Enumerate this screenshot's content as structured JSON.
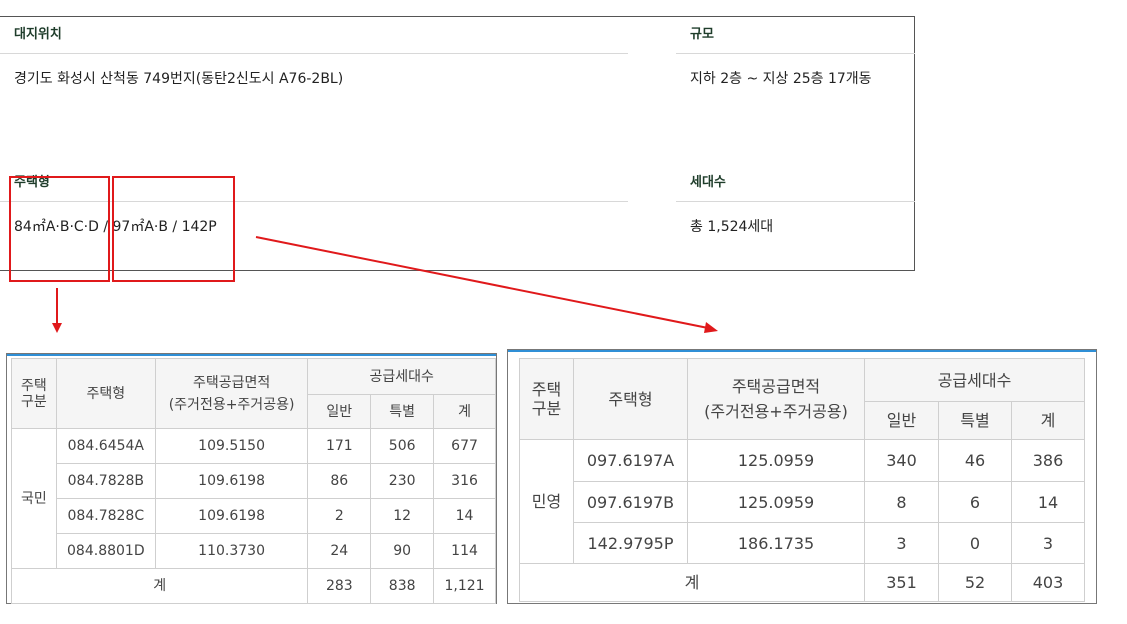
{
  "info": {
    "location_label": "대지위치",
    "location_value": "경기도 화성시 산척동 749번지(동탄2신도시 A76-2BL)",
    "scale_label": "규모",
    "scale_value": "지하 2층 ~ 지상 25층 17개동",
    "type_label": "주택형",
    "type_value": "84㎡A·B·C·D / 97㎡A·B / 142P",
    "units_label": "세대수",
    "units_value": "총 1,524세대"
  },
  "colors": {
    "accent_red": "#e0191b",
    "header_blue": "#2f8fd6",
    "label_green": "#1f3d2b"
  },
  "table1": {
    "h_category": "주택\n구분",
    "h_type": "주택형",
    "h_area": "주택공급면적",
    "h_area_sub": "(주거전용+주거공용)",
    "h_supply": "공급세대수",
    "h_general": "일반",
    "h_special": "특별",
    "h_total": "계",
    "category": "국민",
    "rows": [
      {
        "type": "084.6454A",
        "area": "109.5150",
        "general": "171",
        "special": "506",
        "total": "677"
      },
      {
        "type": "084.7828B",
        "area": "109.6198",
        "general": "86",
        "special": "230",
        "total": "316"
      },
      {
        "type": "084.7828C",
        "area": "109.6198",
        "general": "2",
        "special": "12",
        "total": "14"
      },
      {
        "type": "084.8801D",
        "area": "110.3730",
        "general": "24",
        "special": "90",
        "total": "114"
      }
    ],
    "sum_label": "계",
    "sum_general": "283",
    "sum_special": "838",
    "sum_total": "1,121"
  },
  "table2": {
    "h_category": "주택\n구분",
    "h_type": "주택형",
    "h_area": "주택공급면적",
    "h_area_sub": "(주거전용+주거공용)",
    "h_supply": "공급세대수",
    "h_general": "일반",
    "h_special": "특별",
    "h_total": "계",
    "category": "민영",
    "rows": [
      {
        "type": "097.6197A",
        "area": "125.0959",
        "general": "340",
        "special": "46",
        "total": "386"
      },
      {
        "type": "097.6197B",
        "area": "125.0959",
        "general": "8",
        "special": "6",
        "total": "14"
      },
      {
        "type": "142.9795P",
        "area": "186.1735",
        "general": "3",
        "special": "0",
        "total": "3"
      }
    ],
    "sum_label": "계",
    "sum_general": "351",
    "sum_special": "52",
    "sum_total": "403"
  }
}
